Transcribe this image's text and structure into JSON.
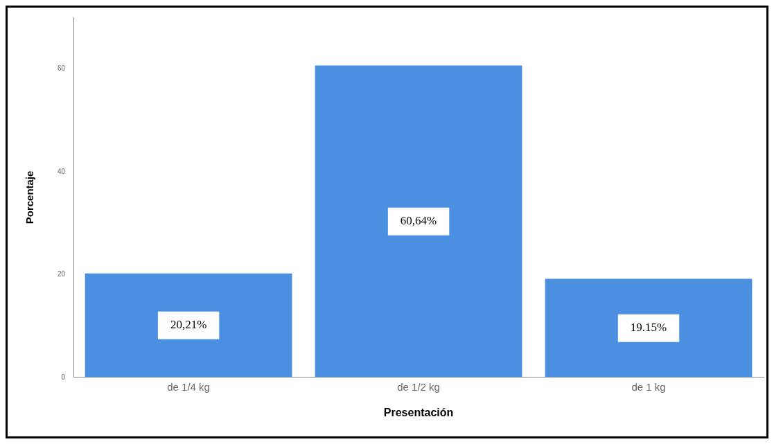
{
  "chart_data": {
    "type": "bar",
    "xlabel": "Presentación",
    "ylabel": "Porcentaje",
    "categories": [
      "de 1/4 kg",
      "de 1/2 kg",
      "de 1 kg"
    ],
    "values": [
      20.21,
      60.64,
      19.15
    ],
    "value_labels": [
      "20,21%",
      "60,64%",
      "19.15%"
    ],
    "color": "#4a8fe0",
    "ylim": [
      0,
      70
    ],
    "yticks": [
      0,
      20,
      40,
      60
    ],
    "grid": false,
    "legend": false
  }
}
